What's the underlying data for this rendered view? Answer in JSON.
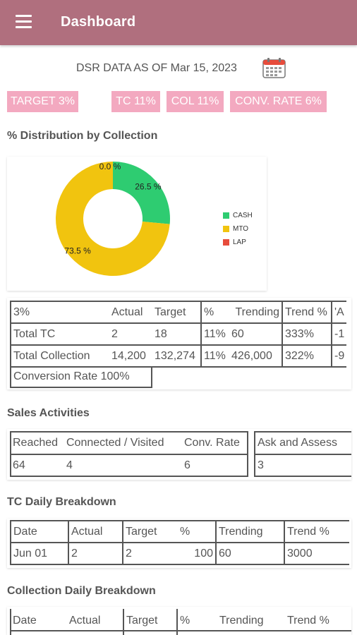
{
  "appbar": {
    "title": "Dashboard",
    "menu_icon": "hamburger-menu-icon"
  },
  "dsr": {
    "label": "DSR DATA AS OF Mar 15, 2023",
    "calendar_icon": "calendar-icon"
  },
  "badges": {
    "target": "TARGET 3%",
    "tc": "TC 11%",
    "col": "COL 11%",
    "conv": "CONV. RATE 6%"
  },
  "colors": {
    "appbar": "#b06f7e",
    "badge": "#f3a9c0",
    "cash": "#2ecc71",
    "mto": "#f1c40f",
    "lap": "#e74c3c"
  },
  "distribution": {
    "title": "% Distribution by Collection",
    "chart_data": {
      "type": "pie",
      "categories": [
        "CASH",
        "MTO",
        "LAP"
      ],
      "values": [
        26.5,
        73.5,
        0.0
      ],
      "labels": [
        "26.5 %",
        "73.5 %",
        "0.0 %"
      ],
      "legend_position": "right"
    }
  },
  "summary": {
    "headers": [
      "3%",
      "Actual",
      "Target",
      "%",
      "Trending",
      "Trend %",
      "'A"
    ],
    "rows": [
      [
        "Total TC",
        "2",
        "18",
        "11%",
        "60",
        "333%",
        "-1"
      ],
      [
        "Total Collection",
        "14,200",
        "132,274",
        "11%",
        "426,000",
        "322%",
        "-9"
      ]
    ],
    "conversion": "Conversion Rate 100%"
  },
  "sales": {
    "title": "Sales Activities",
    "headers": [
      "Reached",
      "Connected / Visited",
      "Conv. Rate",
      "Ask and Assess"
    ],
    "values": [
      "64",
      "4",
      "6",
      "3"
    ]
  },
  "tc_daily": {
    "title": "TC Daily Breakdown",
    "headers": [
      "Date",
      "Actual",
      "Target",
      "%",
      "Trending",
      "Trend %"
    ],
    "rows": [
      [
        "Jun 01",
        "2",
        "2",
        "100",
        "60",
        "3000"
      ]
    ]
  },
  "collection_daily": {
    "title": "Collection Daily Breakdown",
    "headers": [
      "Date",
      "Actual",
      "Target",
      "%",
      "Trending",
      "Trend %"
    ]
  }
}
